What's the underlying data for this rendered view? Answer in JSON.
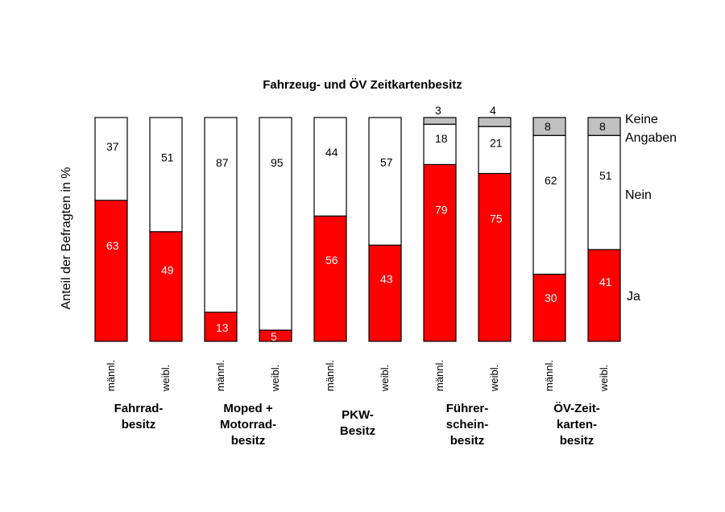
{
  "chart_data": {
    "type": "bar",
    "stacked": true,
    "title": "Fahrzeug- und ÖV Zeitkartenbesitz",
    "ylabel": "Anteil der Befragten in %",
    "ylim": [
      0,
      100
    ],
    "categories": [
      "männl.",
      "weibl.",
      "männl.",
      "weibl.",
      "männl.",
      "weibl.",
      "männl.",
      "weibl.",
      "männl.",
      "weibl."
    ],
    "groups": [
      {
        "label": [
          "Fahrrad-",
          "besitz"
        ]
      },
      {
        "label": [
          "Moped +",
          "Motorrad-",
          "besitz"
        ]
      },
      {
        "label": [
          "PKW-",
          "Besitz"
        ]
      },
      {
        "label": [
          "Führer-",
          "schein-",
          "besitz"
        ]
      },
      {
        "label": [
          "ÖV-Zeit-",
          "karten-",
          "besitz"
        ]
      }
    ],
    "series": [
      {
        "name": "Ja",
        "color": "#ff0000",
        "text_color": "#ffffff",
        "values": [
          63,
          49,
          13,
          5,
          56,
          43,
          79,
          75,
          30,
          41
        ]
      },
      {
        "name": "Nein",
        "color": "#ffffff",
        "text_color": "#000000",
        "values": [
          37,
          51,
          87,
          95,
          44,
          57,
          18,
          21,
          62,
          51
        ]
      },
      {
        "name": "Keine Angaben",
        "color": "#c0c0c0",
        "text_color": "#000000",
        "values": [
          null,
          null,
          null,
          null,
          null,
          null,
          3,
          4,
          8,
          8
        ]
      }
    ],
    "legend_labels": {
      "keine_angaben": [
        "Keine",
        "Angaben"
      ],
      "nein": "Nein",
      "ja": "Ja"
    },
    "legend_position": "right"
  }
}
